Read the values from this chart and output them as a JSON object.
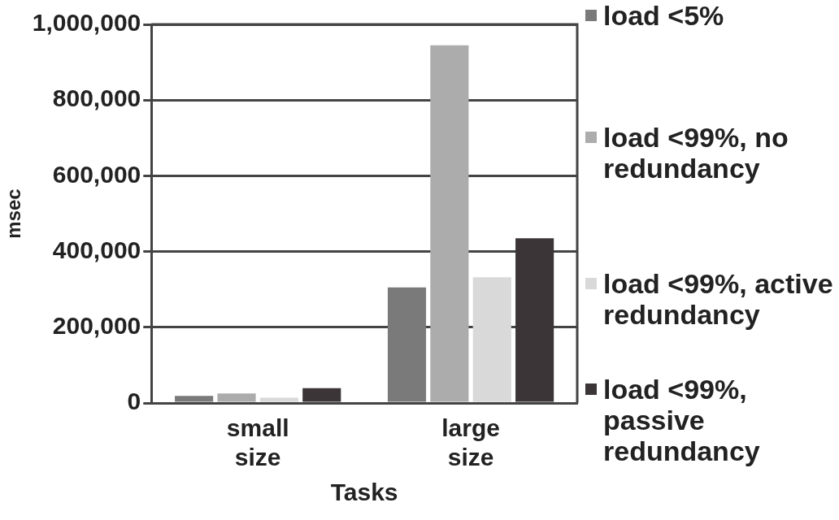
{
  "chart_data": {
    "type": "bar",
    "xlabel": "Tasks",
    "ylabel": "msec",
    "categories": [
      "small size",
      "large size"
    ],
    "series": [
      {
        "name": "load <5%",
        "color": "#7a7a7a",
        "values": [
          19000,
          305000
        ]
      },
      {
        "name": "load <99%, no redundancy",
        "color": "#acacac",
        "values": [
          25000,
          945000
        ]
      },
      {
        "name": "load <99%, active redundancy",
        "color": "#d9d9d9",
        "values": [
          14000,
          332000
        ]
      },
      {
        "name": "load <99%, passive redundancy",
        "color": "#3b3537",
        "values": [
          39000,
          435000
        ]
      }
    ],
    "ylim": [
      0,
      1000000
    ],
    "yticks": [
      {
        "value": 0,
        "label": "0"
      },
      {
        "value": 200000,
        "label": "200,000"
      },
      {
        "value": 400000,
        "label": "400,000"
      },
      {
        "value": 600000,
        "label": "600,000"
      },
      {
        "value": 800000,
        "label": "800,000"
      },
      {
        "value": 1000000,
        "label": "1,000,000"
      }
    ],
    "grid": "y",
    "legend": "right"
  }
}
